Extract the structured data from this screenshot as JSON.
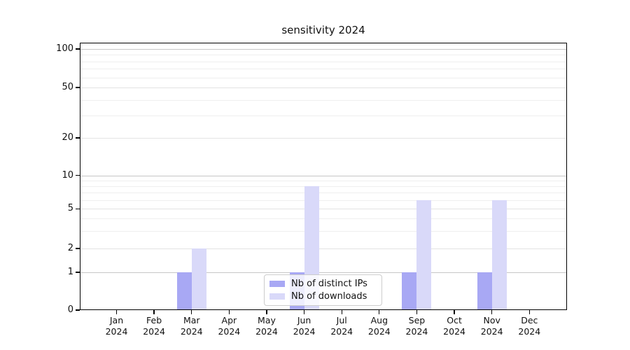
{
  "chart_data": {
    "type": "bar",
    "title": "sensitivity 2024",
    "x_year": "2024",
    "x_months": [
      "Jan",
      "Feb",
      "Mar",
      "Apr",
      "May",
      "Jun",
      "Jul",
      "Aug",
      "Sep",
      "Oct",
      "Nov",
      "Dec"
    ],
    "categories": [
      "Jan 2024",
      "Feb 2024",
      "Mar 2024",
      "Apr 2024",
      "May 2024",
      "Jun 2024",
      "Jul 2024",
      "Aug 2024",
      "Sep 2024",
      "Oct 2024",
      "Nov 2024",
      "Dec 2024"
    ],
    "series": [
      {
        "name": "Nb of distinct IPs",
        "color": "#a8a8f4",
        "values": [
          0,
          0,
          1,
          0,
          0,
          1,
          0,
          0,
          1,
          0,
          1,
          0
        ]
      },
      {
        "name": "Nb of downloads",
        "color": "#d9d9f9",
        "values": [
          0,
          0,
          2,
          0,
          0,
          8,
          0,
          0,
          6,
          0,
          6,
          0
        ]
      }
    ],
    "y_axis": {
      "scale": "log-like",
      "ticks": [
        0,
        1,
        2,
        5,
        10,
        20,
        50,
        100
      ],
      "minor_ticks": [
        3,
        4,
        6,
        7,
        8,
        9,
        30,
        40,
        60,
        70,
        80,
        90
      ],
      "range": [
        0,
        130
      ]
    },
    "grid": "horizontal",
    "legend_position": "lower center",
    "colors": {
      "frame": "#000000",
      "grid_decade": "#c6c6c6",
      "grid_major": "#e3e3e3",
      "grid_minor": "#efefef"
    }
  }
}
